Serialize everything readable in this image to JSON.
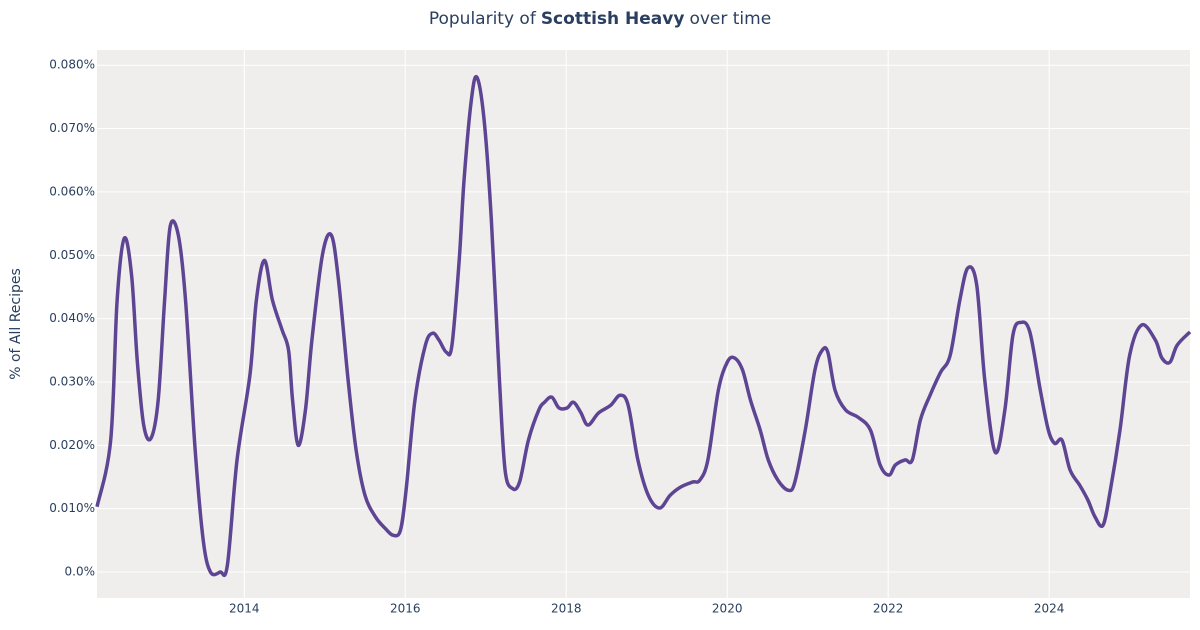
{
  "chart_data": {
    "type": "line",
    "title": [
      "Popularity of",
      "Scottish Heavy",
      "over time"
    ],
    "y_label": "% of All Recipes",
    "x": [
      2012.17,
      2012.34,
      2012.42,
      2012.51,
      2012.6,
      2012.67,
      2012.75,
      2012.84,
      2012.93,
      2013.01,
      2013.08,
      2013.18,
      2013.27,
      2013.39,
      2013.49,
      2013.58,
      2013.7,
      2013.79,
      2013.91,
      2014.07,
      2014.15,
      2014.25,
      2014.35,
      2014.47,
      2014.55,
      2014.6,
      2014.67,
      2014.76,
      2014.84,
      2014.97,
      2015.08,
      2015.17,
      2015.29,
      2015.39,
      2015.5,
      2015.63,
      2015.75,
      2015.85,
      2015.94,
      2016.01,
      2016.12,
      2016.25,
      2016.34,
      2016.42,
      2016.51,
      2016.58,
      2016.67,
      2016.73,
      2016.82,
      2016.89,
      2016.98,
      2017.07,
      2017.17,
      2017.24,
      2017.33,
      2017.42,
      2017.53,
      2017.66,
      2017.73,
      2017.82,
      2017.91,
      2018.01,
      2018.09,
      2018.18,
      2018.27,
      2018.4,
      2018.55,
      2018.67,
      2018.77,
      2018.89,
      2019.02,
      2019.16,
      2019.29,
      2019.42,
      2019.57,
      2019.66,
      2019.76,
      2019.89,
      2020.0,
      2020.09,
      2020.19,
      2020.29,
      2020.41,
      2020.51,
      2020.63,
      2020.76,
      2020.84,
      2020.97,
      2021.09,
      2021.18,
      2021.25,
      2021.34,
      2021.47,
      2021.63,
      2021.78,
      2021.9,
      2022.01,
      2022.09,
      2022.21,
      2022.3,
      2022.4,
      2022.52,
      2022.65,
      2022.77,
      2022.89,
      2022.99,
      2023.1,
      2023.2,
      2023.33,
      2023.45,
      2023.55,
      2023.65,
      2023.76,
      2023.89,
      2023.99,
      2024.07,
      2024.16,
      2024.26,
      2024.38,
      2024.48,
      2024.57,
      2024.67,
      2024.76,
      2024.88,
      2025.0,
      2025.15,
      2025.32,
      2025.4,
      2025.5,
      2025.59,
      2025.75
    ],
    "series": [
      {
        "name": "Scottish Heavy",
        "color": "#5e4593",
        "values": [
          0.0103,
          0.0208,
          0.0429,
          0.0527,
          0.0468,
          0.0334,
          0.0232,
          0.0211,
          0.0271,
          0.0429,
          0.0546,
          0.0532,
          0.0429,
          0.0192,
          0.005,
          0.0,
          0.0,
          0.0011,
          0.0177,
          0.0311,
          0.0429,
          0.0492,
          0.0429,
          0.0382,
          0.035,
          0.0271,
          0.02,
          0.0256,
          0.0366,
          0.05,
          0.0532,
          0.0461,
          0.0303,
          0.0192,
          0.0121,
          0.0087,
          0.0069,
          0.0058,
          0.0066,
          0.0129,
          0.0271,
          0.0358,
          0.0377,
          0.0366,
          0.0347,
          0.0358,
          0.0492,
          0.0618,
          0.0744,
          0.0781,
          0.0713,
          0.0555,
          0.0303,
          0.0161,
          0.0132,
          0.0142,
          0.0208,
          0.0256,
          0.0268,
          0.0276,
          0.0259,
          0.0259,
          0.0268,
          0.0252,
          0.0232,
          0.0251,
          0.0263,
          0.0279,
          0.0263,
          0.0177,
          0.0121,
          0.0101,
          0.0121,
          0.0134,
          0.0142,
          0.0145,
          0.0177,
          0.0287,
          0.0331,
          0.0338,
          0.0319,
          0.0271,
          0.0224,
          0.0177,
          0.0145,
          0.0129,
          0.0142,
          0.0224,
          0.0319,
          0.035,
          0.0347,
          0.0287,
          0.0256,
          0.0244,
          0.0224,
          0.0169,
          0.0153,
          0.0169,
          0.0177,
          0.0177,
          0.024,
          0.0279,
          0.0315,
          0.0342,
          0.0429,
          0.048,
          0.0453,
          0.0303,
          0.0189,
          0.0256,
          0.0374,
          0.0394,
          0.0379,
          0.0287,
          0.0224,
          0.0203,
          0.0208,
          0.0161,
          0.0137,
          0.0114,
          0.0087,
          0.0074,
          0.0129,
          0.0224,
          0.0342,
          0.039,
          0.0366,
          0.0338,
          0.0331,
          0.0358,
          0.0379
        ]
      }
    ],
    "xlim": [
      2012.17,
      2025.75
    ],
    "xticks": [
      2014,
      2016,
      2018,
      2020,
      2022,
      2024
    ],
    "ylim": [
      -0.0041,
      0.0824
    ],
    "yticks": [
      {
        "value": 0,
        "label": "0.0%"
      },
      {
        "value": 0.01,
        "label": "0.010%"
      },
      {
        "value": 0.02,
        "label": "0.020%"
      },
      {
        "value": 0.03,
        "label": "0.030%"
      },
      {
        "value": 0.04,
        "label": "0.040%"
      },
      {
        "value": 0.05,
        "label": "0.050%"
      },
      {
        "value": 0.06,
        "label": "0.060%"
      },
      {
        "value": 0.07,
        "label": "0.070%"
      },
      {
        "value": 0.08,
        "label": "0.080%"
      }
    ],
    "grid": true,
    "background": "#efeeed"
  }
}
